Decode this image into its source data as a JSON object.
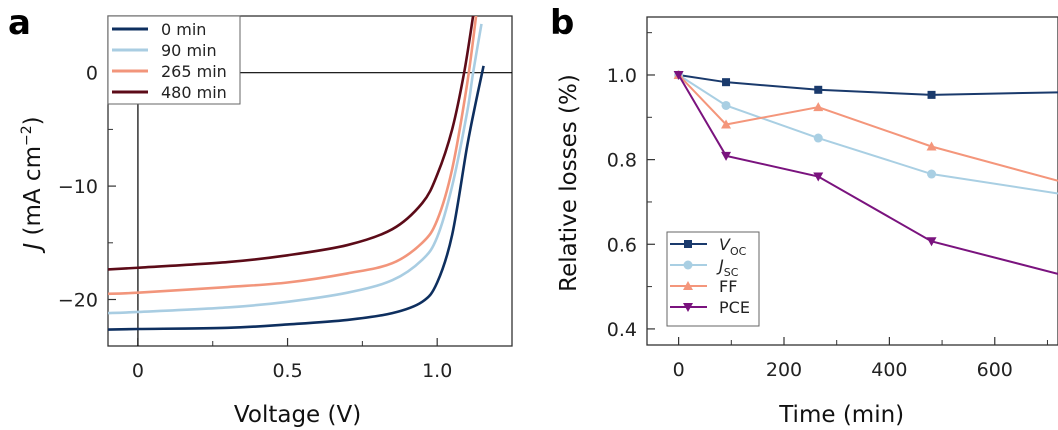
{
  "chart_data": [
    {
      "panel_label": "a",
      "type": "line",
      "xlabel": "Voltage (V)",
      "ylabel": {
        "italic": "J",
        "unit": " (mA cm",
        "sup": "−2",
        "close": ")"
      },
      "xlim": [
        -0.1,
        1.25
      ],
      "ylim": [
        -24.1,
        5
      ],
      "xticks": [
        {
          "v": 0,
          "label": "0"
        },
        {
          "v": 0.5,
          "label": "0.5"
        },
        {
          "v": 1.0,
          "label": "1.0"
        }
      ],
      "xminor": [
        0.25,
        0.75
      ],
      "yticks": [
        {
          "v": 0,
          "label": "0"
        },
        {
          "v": -10,
          "label": "−10"
        },
        {
          "v": -20,
          "label": "−20"
        }
      ],
      "yminor": [
        -5,
        -15
      ],
      "zero_lines": true,
      "legend_position": "top-left",
      "series": [
        {
          "name": "0 min",
          "color": "#0e2f5f",
          "points": [
            [
              -0.1,
              -22.65
            ],
            [
              0,
              -22.6
            ],
            [
              0.3,
              -22.5
            ],
            [
              0.5,
              -22.2
            ],
            [
              0.7,
              -21.8
            ],
            [
              0.85,
              -21.2
            ],
            [
              0.95,
              -20.2
            ],
            [
              1.0,
              -18.5
            ],
            [
              1.05,
              -14.3
            ],
            [
              1.1,
              -6.5
            ],
            [
              1.13,
              -2.5
            ],
            [
              1.155,
              0.6
            ]
          ]
        },
        {
          "name": "90 min",
          "color": "#a9cde2",
          "points": [
            [
              -0.1,
              -21.2
            ],
            [
              0,
              -21.1
            ],
            [
              0.3,
              -20.7
            ],
            [
              0.5,
              -20.2
            ],
            [
              0.7,
              -19.4
            ],
            [
              0.85,
              -18.3
            ],
            [
              0.95,
              -16.5
            ],
            [
              1.0,
              -14.5
            ],
            [
              1.05,
              -10
            ],
            [
              1.1,
              -3.5
            ],
            [
              1.12,
              0
            ],
            [
              1.148,
              4.3
            ]
          ]
        },
        {
          "name": "265 min",
          "color": "#f2957b",
          "points": [
            [
              -0.1,
              -19.5
            ],
            [
              0,
              -19.4
            ],
            [
              0.3,
              -18.9
            ],
            [
              0.5,
              -18.5
            ],
            [
              0.7,
              -17.7
            ],
            [
              0.85,
              -16.8
            ],
            [
              0.95,
              -15
            ],
            [
              1.0,
              -13
            ],
            [
              1.05,
              -8.5
            ],
            [
              1.1,
              -1
            ],
            [
              1.13,
              5
            ]
          ]
        },
        {
          "name": "480 min",
          "color": "#5c0b18",
          "points": [
            [
              -0.1,
              -17.35
            ],
            [
              0,
              -17.2
            ],
            [
              0.3,
              -16.7
            ],
            [
              0.5,
              -16.1
            ],
            [
              0.7,
              -15.2
            ],
            [
              0.85,
              -13.8
            ],
            [
              0.95,
              -11.5
            ],
            [
              1.0,
              -9
            ],
            [
              1.05,
              -5
            ],
            [
              1.09,
              0
            ],
            [
              1.12,
              5
            ]
          ]
        }
      ]
    },
    {
      "panel_label": "b",
      "type": "line",
      "xlabel": "Time (min)",
      "ylabel": "Relative losses (%)",
      "xlim": [
        -60,
        720
      ],
      "ylim": [
        0.362,
        1.137
      ],
      "xticks": [
        {
          "v": 0,
          "label": "0"
        },
        {
          "v": 200,
          "label": "200"
        },
        {
          "v": 400,
          "label": "400"
        },
        {
          "v": 600,
          "label": "600"
        }
      ],
      "xminor": [
        100,
        300,
        500,
        700
      ],
      "yticks": [
        {
          "v": 0.4,
          "label": "0.4"
        },
        {
          "v": 0.6,
          "label": "0.6"
        },
        {
          "v": 0.8,
          "label": "0.8"
        },
        {
          "v": 1.0,
          "label": "1.0"
        }
      ],
      "yminor": [
        0.5,
        0.7,
        0.9,
        1.1
      ],
      "x": [
        0,
        90,
        265,
        480,
        720
      ],
      "legend_position": "bottom-left",
      "series": [
        {
          "name": "VOC",
          "label_main": "V",
          "label_sub": "OC",
          "italic": true,
          "marker": "square",
          "color": "#1a3a6c",
          "values": [
            1.0,
            0.983,
            0.965,
            0.953,
            0.959
          ]
        },
        {
          "name": "JSC",
          "label_main": "J",
          "label_sub": "SC",
          "italic": true,
          "marker": "circle",
          "color": "#a9cfe3",
          "values": [
            1.0,
            0.928,
            0.851,
            0.766,
            0.72
          ]
        },
        {
          "name": "FF",
          "label_main": "FF",
          "label_sub": "",
          "italic": false,
          "marker": "triangle-up",
          "color": "#f4967b",
          "values": [
            1.0,
            0.883,
            0.924,
            0.831,
            0.75
          ]
        },
        {
          "name": "PCE",
          "label_main": "PCE",
          "label_sub": "",
          "italic": false,
          "marker": "triangle-down",
          "color": "#7a137e",
          "values": [
            1.0,
            0.809,
            0.76,
            0.607,
            0.53
          ]
        }
      ]
    }
  ]
}
